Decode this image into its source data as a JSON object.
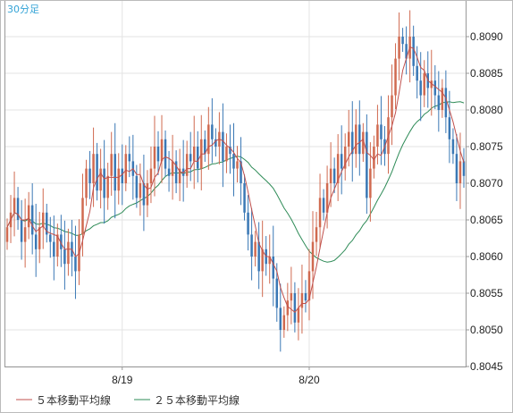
{
  "timeframe_label": "30分足",
  "colors": {
    "up": "#d06a50",
    "down": "#3a78b5",
    "ma5": "#c0504d",
    "ma25": "#2e8b57",
    "grid": "#e3e3e3",
    "border": "#999999",
    "timeframe_label": "#33a3d6"
  },
  "legend": [
    {
      "label": "５本移動平均線",
      "color": "#c0504d"
    },
    {
      "label": "２５本移動平均線",
      "color": "#2e8b57"
    }
  ],
  "chart_data": {
    "type": "candlestick",
    "title": "",
    "xlabel": "",
    "ylabel": "",
    "ylim": [
      0.8045,
      0.8095
    ],
    "y_ticks": [
      "0.8045",
      "0.8050",
      "0.8055",
      "0.8060",
      "0.8065",
      "0.8070",
      "0.8075",
      "0.8080",
      "0.8085",
      "0.8090"
    ],
    "x_ticks": [
      {
        "label": "8/19",
        "bar_index": 32
      },
      {
        "label": "8/20",
        "bar_index": 84
      }
    ],
    "bar_count": 128,
    "closes": [
      0.8064,
      0.8066,
      0.8068,
      0.8065,
      0.8062,
      0.8064,
      0.8067,
      0.8063,
      0.8061,
      0.8064,
      0.8066,
      0.8063,
      0.8062,
      0.806,
      0.8063,
      0.8061,
      0.8059,
      0.8062,
      0.806,
      0.8058,
      0.8063,
      0.8068,
      0.8072,
      0.807,
      0.8074,
      0.8069,
      0.8072,
      0.8068,
      0.8071,
      0.8074,
      0.8069,
      0.8072,
      0.807,
      0.8074,
      0.8073,
      0.8071,
      0.8068,
      0.807,
      0.8067,
      0.807,
      0.8072,
      0.8075,
      0.8073,
      0.8076,
      0.8072,
      0.8071,
      0.8073,
      0.807,
      0.8072,
      0.8071,
      0.8074,
      0.8073,
      0.8075,
      0.8072,
      0.8076,
      0.8074,
      0.8078,
      0.8076,
      0.8075,
      0.8077,
      0.8073,
      0.8075,
      0.8074,
      0.8072,
      0.8073,
      0.807,
      0.8066,
      0.8063,
      0.806,
      0.8062,
      0.8058,
      0.8061,
      0.8059,
      0.806,
      0.8057,
      0.8053,
      0.805,
      0.8052,
      0.8054,
      0.8055,
      0.8051,
      0.8053,
      0.8055,
      0.8054,
      0.8058,
      0.8062,
      0.8064,
      0.8068,
      0.8066,
      0.807,
      0.8072,
      0.807,
      0.8074,
      0.8072,
      0.8075,
      0.8077,
      0.8074,
      0.8078,
      0.8074,
      0.8077,
      0.8068,
      0.8072,
      0.8075,
      0.8078,
      0.8076,
      0.8074,
      0.8079,
      0.8082,
      0.8087,
      0.809,
      0.8089,
      0.8087,
      0.809,
      0.8086,
      0.8084,
      0.8082,
      0.8085,
      0.8083,
      0.8084,
      0.8082,
      0.808,
      0.8083,
      0.8079,
      0.8076,
      0.8074,
      0.807,
      0.8073,
      0.8071
    ]
  }
}
